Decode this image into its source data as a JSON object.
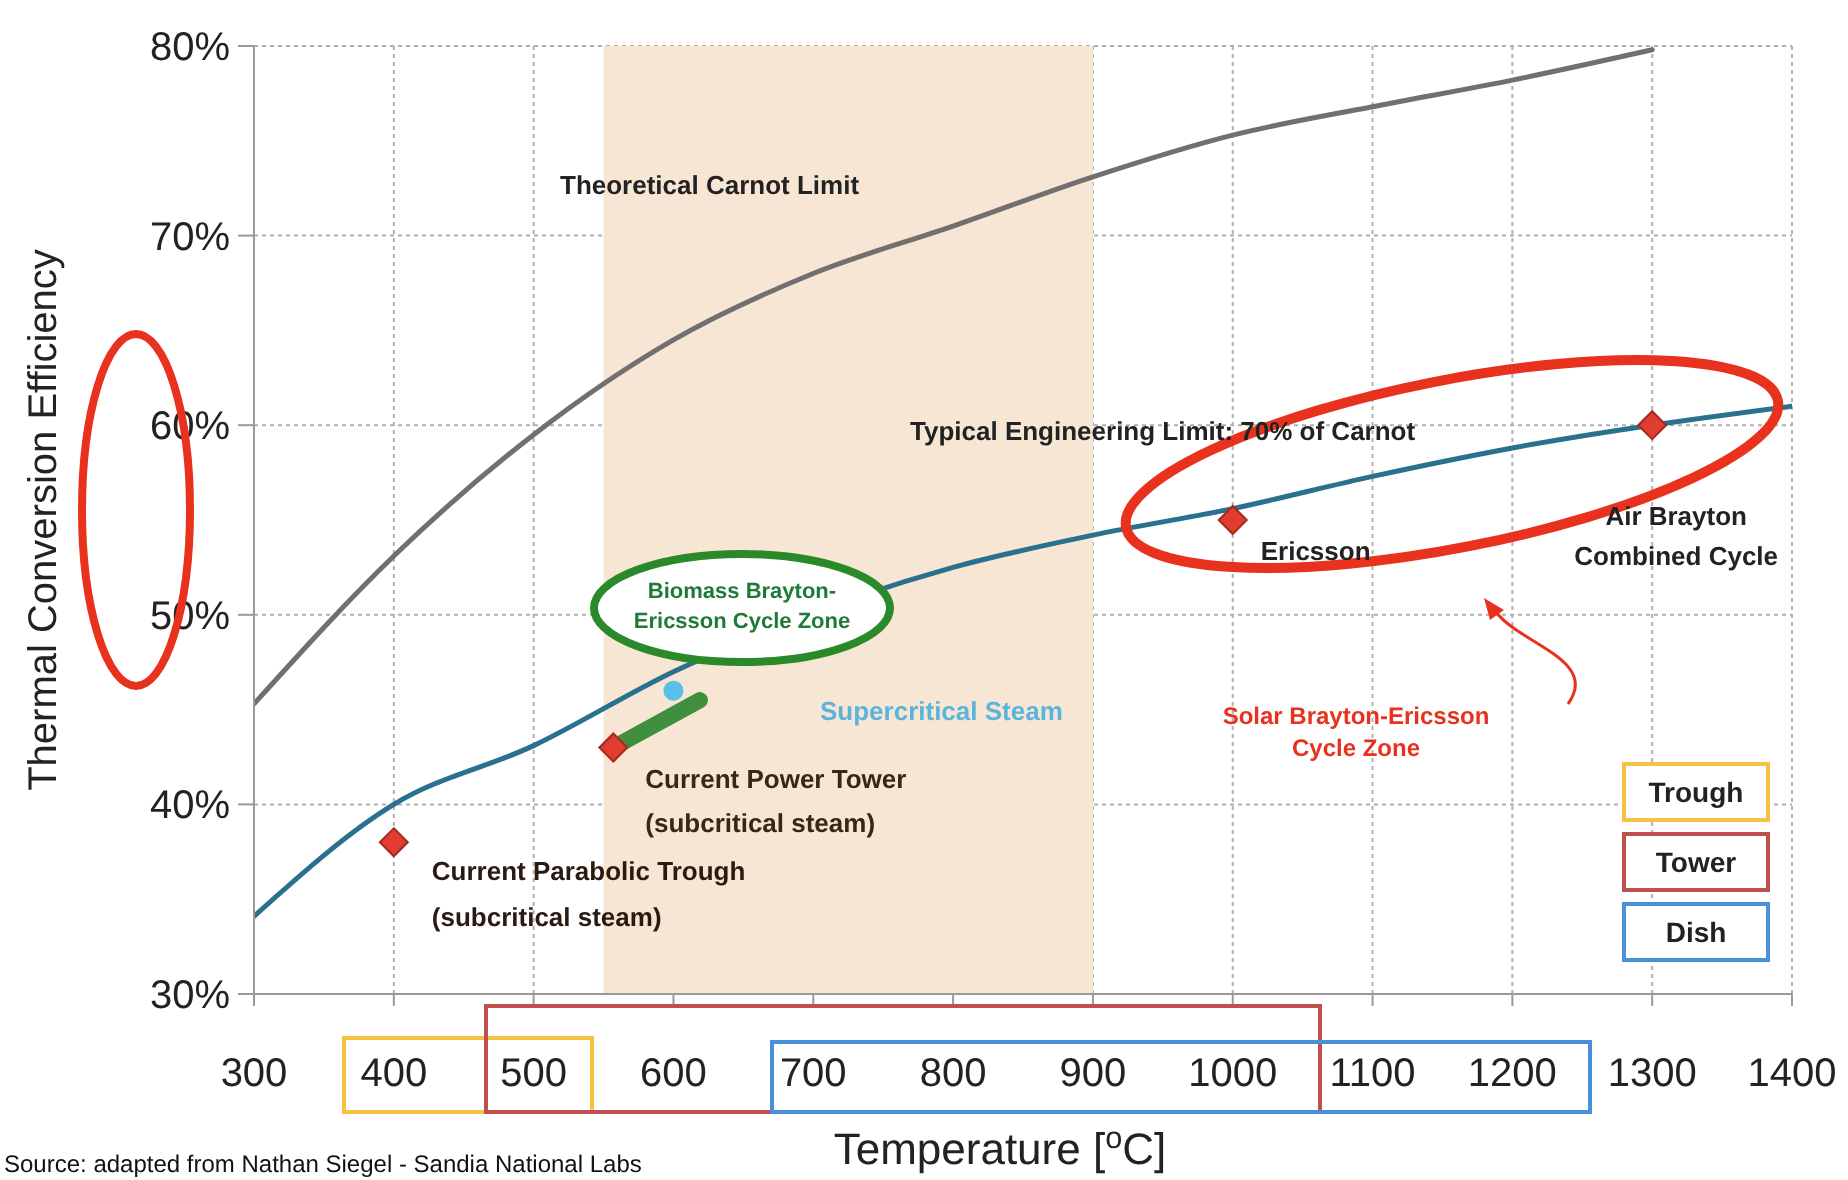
{
  "chart_data": {
    "type": "line",
    "xlabel": "Temperature [$^{o}$C]",
    "ylabel": "Thermal Conversion Efficiency",
    "xlim": [
      300,
      1400
    ],
    "xticks": [
      300,
      400,
      500,
      600,
      700,
      800,
      900,
      1000,
      1100,
      1200,
      1300,
      1400
    ],
    "ylim": [
      30,
      80
    ],
    "yticks": [
      {
        "value": 30,
        "label": "30%"
      },
      {
        "value": 40,
        "label": "40%"
      },
      {
        "value": 50,
        "label": "50%"
      },
      {
        "value": 60,
        "label": "60%"
      },
      {
        "value": 70,
        "label": "70%"
      },
      {
        "value": 80,
        "label": "80%"
      }
    ],
    "grid": true,
    "series": [
      {
        "color": "#707070",
        "marker": "none",
        "x": [
          300,
          400,
          500,
          600,
          700,
          800,
          900,
          1000,
          1100,
          1200,
          1300
        ],
        "values": [
          45.3,
          53.1,
          59.5,
          64.5,
          68,
          70.5,
          73.1,
          75.3,
          76.8,
          78.2,
          79.8
        ]
      },
      {
        "color": "#2a7190",
        "marker": "none",
        "x": [
          300,
          400,
          500,
          600,
          800,
          900,
          1000,
          1100,
          1200,
          1300,
          1400
        ],
        "values": [
          34.1,
          40,
          43.1,
          47,
          52.5,
          54.2,
          55.6,
          57.3,
          58.8,
          null,
          61
        ]
      },
      {
        "color": "#3f8f3f",
        "marker": "none",
        "x": [
          557,
          619
        ],
        "values": [
          43,
          45.5
        ]
      },
      {
        "type": "scatter",
        "color": "#5bc0e8",
        "marker": "circle",
        "x": [
          600
        ],
        "values": [
          46
        ]
      },
      {
        "type": "scatter",
        "color": "#e03c31",
        "marker": "diamond",
        "x": [
          400,
          557,
          1000,
          1300
        ],
        "values": [
          38,
          43,
          55,
          60
        ]
      }
    ],
    "bands": [
      {
        "axis": "x",
        "from": 550,
        "to": 900,
        "color": "#f8e6d4"
      }
    ],
    "annotations": [
      "Theoretical Carnot Limit",
      "Typical Engineering Limit: 70% of Carnot",
      {
        "text": "Current Parabolic Trough\n(subcritical steam)",
        "x": 400,
        "y": 38
      },
      {
        "text": "Current Power Tower\n(subcritical steam)",
        "x": 557,
        "y": 43
      },
      {
        "text": "Ericsson",
        "x": 1000,
        "y": 55
      },
      {
        "text": "Air Brayton\nCombined Cycle",
        "x": 1300,
        "y": 60
      },
      "Supercritical Steam",
      "Biomass Brayton-\nEricsson Cycle Zone",
      "Solar Brayton-Ericsson\nCycle Zone",
      "Source: adapted from Nathan Siegel - Sandia National Labs",
      "Trough",
      "Tower",
      "Dish"
    ]
  }
}
